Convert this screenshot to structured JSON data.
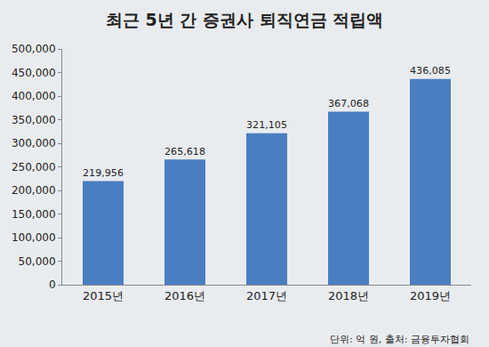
{
  "chart_data": {
    "type": "bar",
    "title": "최근 5년 간 증권사 퇴직연금 적립액",
    "categories": [
      "2015년",
      "2016년",
      "2017년",
      "2018년",
      "2019년"
    ],
    "values": [
      219956,
      265618,
      321105,
      367068,
      436085
    ],
    "value_labels": [
      "219,956",
      "265,618",
      "321,105",
      "367,068",
      "436,085"
    ],
    "color": "#4a7ec0",
    "ylim": [
      0,
      500000
    ],
    "yticks": [
      0,
      {
        "value": 50000,
        "label": "50,000"
      },
      {
        "value": 100000,
        "label": "100,000"
      },
      {
        "value": 150000,
        "label": "150,000"
      },
      {
        "value": 200000,
        "label": "200,000"
      },
      {
        "value": 250000,
        "label": "250,000"
      },
      {
        "value": 300000,
        "label": "300,000"
      },
      {
        "value": 350000,
        "label": "350,000"
      },
      {
        "value": 400000,
        "label": "400,000"
      },
      {
        "value": 450000,
        "label": "450,000"
      },
      {
        "value": 500000,
        "label": "500,000"
      }
    ],
    "grid": false,
    "data_labels": true,
    "annotations": [
      "단위: 억 원, 출처: 금융투자협회"
    ]
  }
}
